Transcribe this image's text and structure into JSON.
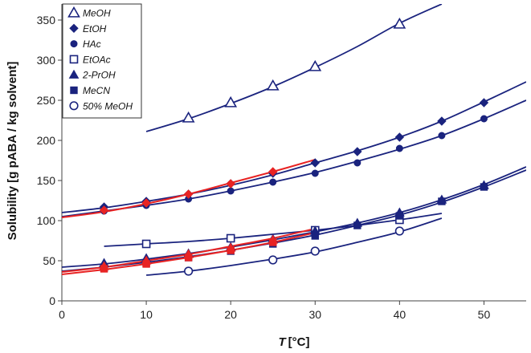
{
  "chart_data": {
    "type": "scatter",
    "title": "",
    "xlabel_italic": "T",
    "xlabel_unit": "[°C]",
    "ylabel": "Solubility  [g pABA / kg solvent]",
    "xlim": [
      0,
      55
    ],
    "ylim": [
      0,
      370
    ],
    "xticks": [
      0,
      10,
      20,
      30,
      40,
      50
    ],
    "yticks": [
      0,
      50,
      100,
      150,
      200,
      250,
      300,
      350
    ],
    "grid": false,
    "legend_position": "top-left",
    "series": [
      {
        "name": "MeOH",
        "marker": "triangle-open",
        "color": "#1a237e",
        "x": [
          15,
          20,
          25,
          30,
          40
        ],
        "y": [
          228,
          247,
          268,
          292,
          345
        ],
        "fit": {
          "x": [
            10,
            15,
            20,
            25,
            30,
            35,
            40,
            45
          ],
          "y": [
            211,
            227,
            246,
            267,
            291,
            317,
            346,
            370
          ]
        }
      },
      {
        "name": "EtOH",
        "marker": "diamond",
        "color": "#1a237e",
        "x": [
          5,
          10,
          15,
          20,
          25,
          30,
          35,
          40,
          45,
          50
        ],
        "y": [
          117,
          124,
          133,
          146,
          159,
          172,
          186,
          204,
          224,
          247
        ],
        "fit": {
          "x": [
            0,
            5,
            10,
            15,
            20,
            25,
            30,
            35,
            40,
            45,
            50,
            55
          ],
          "y": [
            110,
            116,
            124,
            133,
            144,
            157,
            172,
            187,
            204,
            224,
            248,
            273
          ]
        }
      },
      {
        "name": "HAc",
        "marker": "circle",
        "color": "#1a237e",
        "x": [
          5,
          10,
          15,
          20,
          25,
          30,
          35,
          40,
          45,
          50
        ],
        "y": [
          112,
          119,
          127,
          137,
          148,
          159,
          172,
          190,
          206,
          227
        ],
        "fit": {
          "x": [
            0,
            5,
            10,
            15,
            20,
            25,
            30,
            35,
            40,
            45,
            50,
            55
          ],
          "y": [
            105,
            112,
            119,
            127,
            137,
            148,
            160,
            174,
            189,
            206,
            227,
            250
          ]
        }
      },
      {
        "name": "EtOAc",
        "marker": "square-open",
        "color": "#1a237e",
        "x": [
          10,
          20,
          30,
          40
        ],
        "y": [
          71,
          78,
          88,
          101
        ],
        "fit": {
          "x": [
            5,
            10,
            15,
            20,
            25,
            30,
            35,
            40,
            45
          ],
          "y": [
            68,
            71,
            74,
            78,
            83,
            88,
            94,
            101,
            109
          ]
        }
      },
      {
        "name": "2-PrOH",
        "marker": "triangle",
        "color": "#1a237e",
        "x": [
          5,
          10,
          15,
          20,
          25,
          30,
          35,
          40,
          45,
          50
        ],
        "y": [
          47,
          53,
          59,
          67,
          77,
          87,
          97,
          110,
          126,
          144
        ],
        "fit": {
          "x": [
            0,
            5,
            10,
            15,
            20,
            25,
            30,
            35,
            40,
            45,
            50,
            55
          ],
          "y": [
            42,
            46,
            52,
            59,
            67,
            76,
            86,
            97,
            110,
            126,
            145,
            167
          ]
        }
      },
      {
        "name": "MeCN",
        "marker": "square",
        "color": "#1a237e",
        "x": [
          5,
          10,
          15,
          20,
          25,
          30,
          35,
          40,
          45,
          50
        ],
        "y": [
          41,
          47,
          54,
          62,
          71,
          81,
          94,
          106,
          124,
          142
        ],
        "fit": {
          "x": [
            0,
            5,
            10,
            15,
            20,
            25,
            30,
            35,
            40,
            45,
            50,
            55
          ],
          "y": [
            37,
            42,
            48,
            55,
            63,
            72,
            82,
            94,
            107,
            123,
            142,
            163
          ]
        }
      },
      {
        "name": "50% MeOH",
        "marker": "circle-open",
        "color": "#1a237e",
        "x": [
          15,
          25,
          30,
          40
        ],
        "y": [
          37,
          51,
          62,
          87
        ],
        "fit": {
          "x": [
            10,
            15,
            20,
            25,
            30,
            35,
            40,
            45
          ],
          "y": [
            32,
            37,
            44,
            52,
            61,
            73,
            86,
            103
          ]
        }
      }
    ],
    "red_overlay": {
      "color": "#e82323",
      "fits": [
        {
          "x": [
            0,
            5,
            10,
            15,
            20,
            25,
            30
          ],
          "y": [
            104,
            111,
            121,
            133,
            147,
            161,
            176
          ]
        },
        {
          "x": [
            0,
            5,
            10,
            15,
            20,
            25,
            30
          ],
          "y": [
            36,
            42,
            50,
            58,
            68,
            78,
            90
          ]
        },
        {
          "x": [
            0,
            5,
            10,
            15,
            20,
            25,
            30
          ],
          "y": [
            33,
            39,
            46,
            54,
            63,
            73,
            85
          ]
        }
      ],
      "markers": [
        {
          "marker": "diamond",
          "x": [
            5,
            10,
            15,
            20,
            25
          ],
          "y": [
            113,
            122,
            133,
            146,
            161
          ]
        },
        {
          "marker": "triangle",
          "x": [
            5,
            10,
            15,
            20,
            25
          ],
          "y": [
            43,
            50,
            58,
            66,
            76
          ]
        },
        {
          "marker": "square",
          "x": [
            5,
            10,
            15,
            20,
            25
          ],
          "y": [
            40,
            46,
            54,
            63,
            73
          ]
        }
      ]
    }
  }
}
